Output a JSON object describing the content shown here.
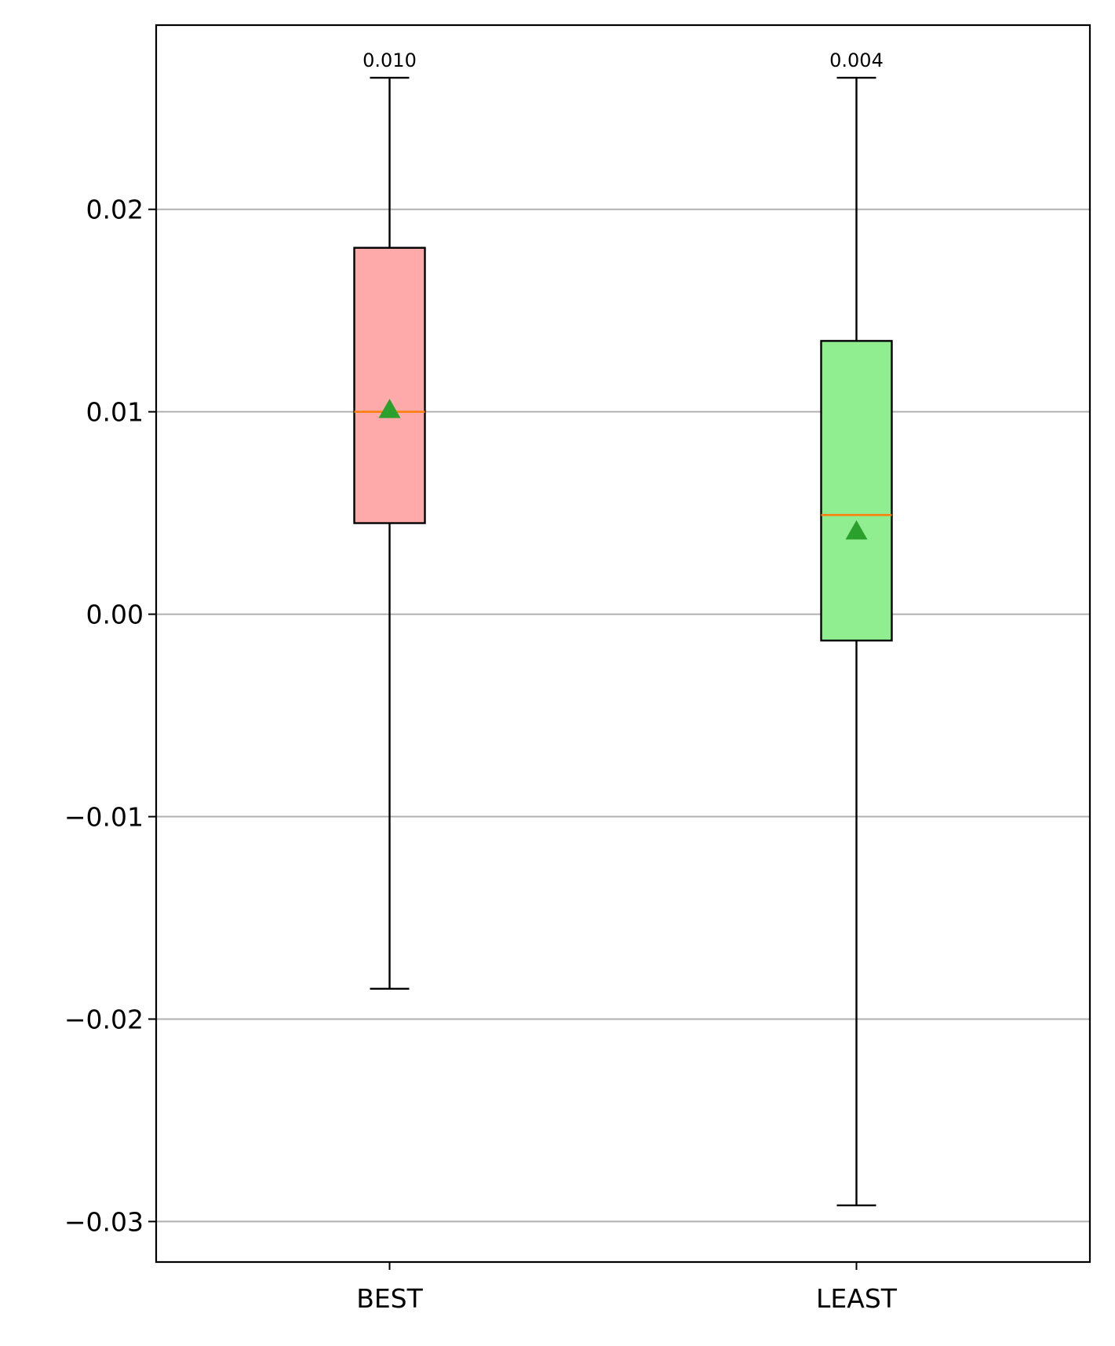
{
  "chart_data": {
    "type": "box",
    "title": "",
    "xlabel": "",
    "ylabel": "",
    "ylim": [
      -0.032,
      0.0291
    ],
    "yticks": [
      -0.03,
      -0.02,
      -0.01,
      0.0,
      0.01,
      0.02
    ],
    "ytick_labels": [
      "−0.03",
      "−0.02",
      "−0.01",
      "0.00",
      "0.01",
      "0.02"
    ],
    "grid": "y",
    "categories": [
      "BEST",
      "LEAST"
    ],
    "boxes": [
      {
        "name": "BEST",
        "whisker_low": -0.0185,
        "q1": 0.0045,
        "median": 0.01,
        "q3": 0.0181,
        "whisker_high": 0.0265,
        "mean": 0.0101,
        "mean_label": "0.010",
        "color": "#ffaaaa"
      },
      {
        "name": "LEAST",
        "whisker_low": -0.0292,
        "q1": -0.0013,
        "median": 0.0049,
        "q3": 0.0135,
        "whisker_high": 0.0265,
        "mean": 0.0041,
        "mean_label": "0.004",
        "color": "#90ee90"
      }
    ],
    "colors": {
      "median": "#ff7f0e",
      "mean_marker": "#2ca02c",
      "grid": "#b0b0b0",
      "edge": "#000000"
    }
  }
}
